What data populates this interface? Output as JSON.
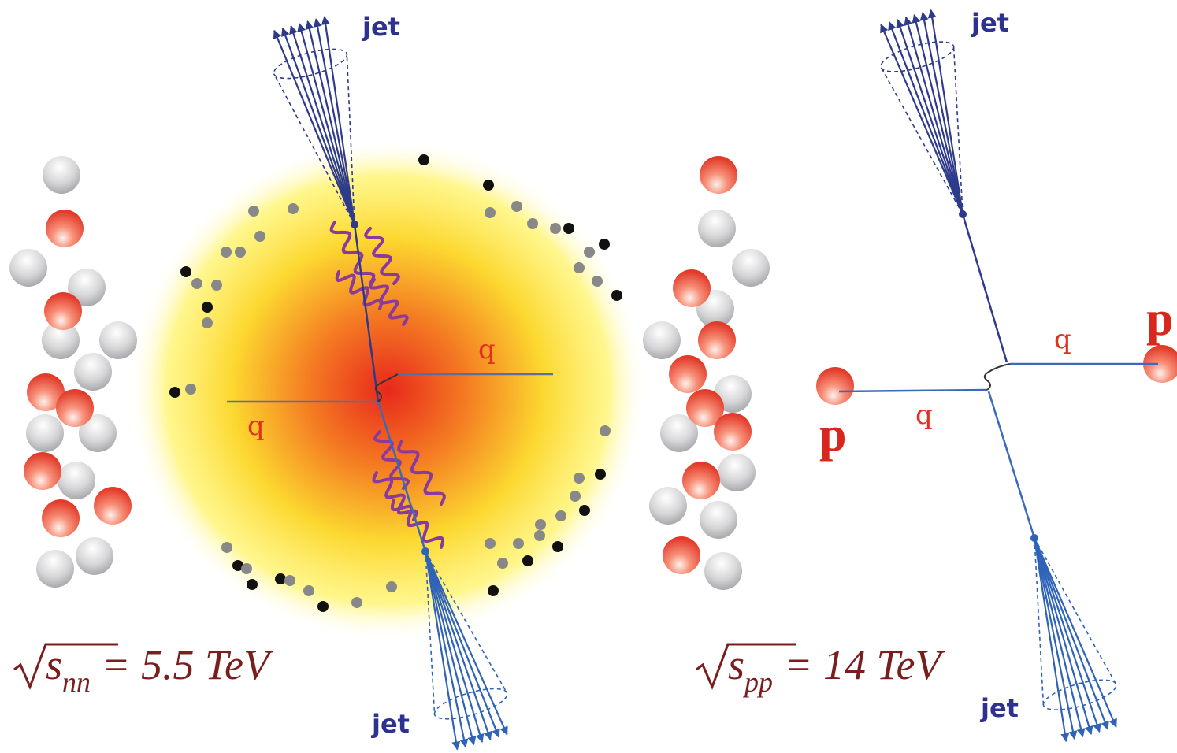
{
  "left": {
    "jets": [
      "jet",
      "jet"
    ],
    "quarks": [
      "q",
      "q"
    ],
    "energy": {
      "symbol": "s",
      "subscript": "nn",
      "relation": "= 5.5 TeV"
    }
  },
  "right": {
    "jets": [
      "jet",
      "jet"
    ],
    "quarks": [
      "q",
      "q"
    ],
    "protons": [
      "p",
      "p"
    ],
    "energy": {
      "symbol": "s",
      "subscript": "pp",
      "relation": "= 14 TeV"
    }
  }
}
